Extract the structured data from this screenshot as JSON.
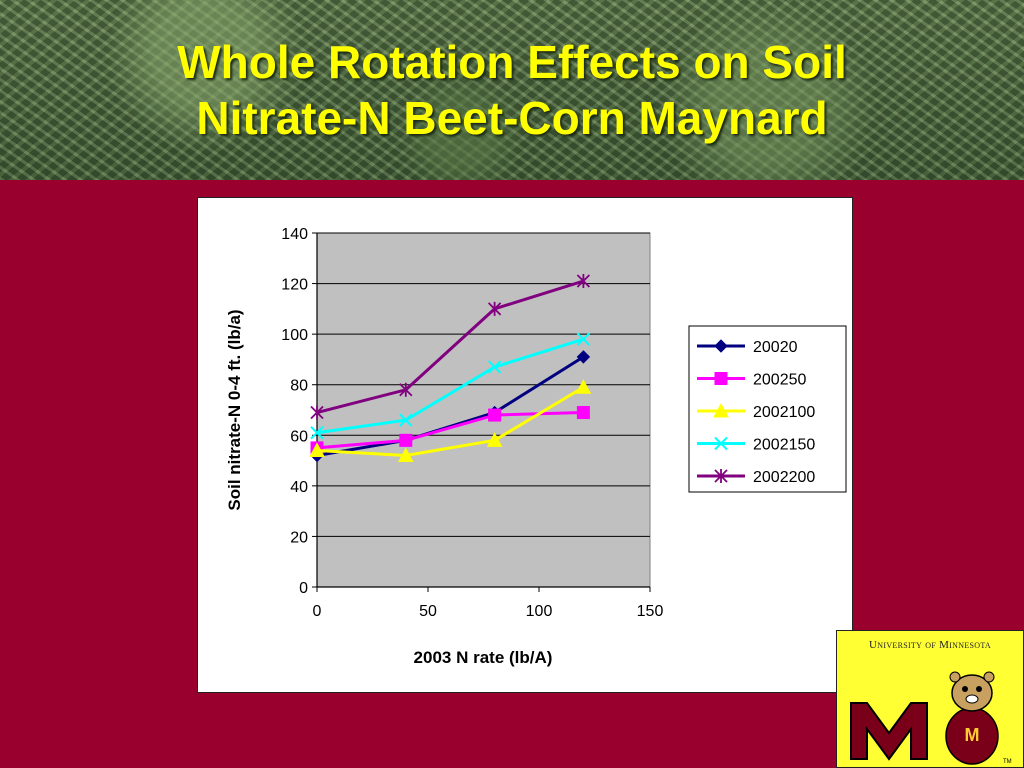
{
  "slide": {
    "title_line1": "Whole Rotation Effects on Soil",
    "title_line2": "Nitrate-N Beet-Corn Maynard"
  },
  "logo": {
    "text": "University of Minnesota",
    "tm": "TM"
  },
  "colors": {
    "background": "#99002e",
    "title": "#ffff00",
    "plot_area": "#c0c0c0"
  },
  "chart_data": {
    "type": "line",
    "title": "",
    "xlabel": "2003 N rate (lb/A)",
    "ylabel": "Soil nitrate-N 0-4 ft. (lb/a)",
    "xlim": [
      0,
      150
    ],
    "ylim": [
      0,
      140
    ],
    "xticks": [
      0,
      50,
      100,
      150
    ],
    "yticks": [
      0,
      20,
      40,
      60,
      80,
      100,
      120,
      140
    ],
    "grid": "horizontal",
    "legend_position": "right",
    "x": [
      0,
      40,
      80,
      120
    ],
    "series": [
      {
        "name": "20020",
        "values": [
          52,
          58,
          69,
          91
        ],
        "color": "#000080",
        "marker": "diamond"
      },
      {
        "name": "200250",
        "values": [
          55,
          58,
          68,
          69
        ],
        "color": "#ff00ff",
        "marker": "square"
      },
      {
        "name": "2002100",
        "values": [
          54,
          52,
          58,
          79
        ],
        "color": "#ffff00",
        "marker": "triangle"
      },
      {
        "name": "2002150",
        "values": [
          61,
          66,
          87,
          98
        ],
        "color": "#00ffff",
        "marker": "x"
      },
      {
        "name": "2002200",
        "values": [
          69,
          78,
          110,
          121
        ],
        "color": "#800080",
        "marker": "star"
      }
    ]
  }
}
